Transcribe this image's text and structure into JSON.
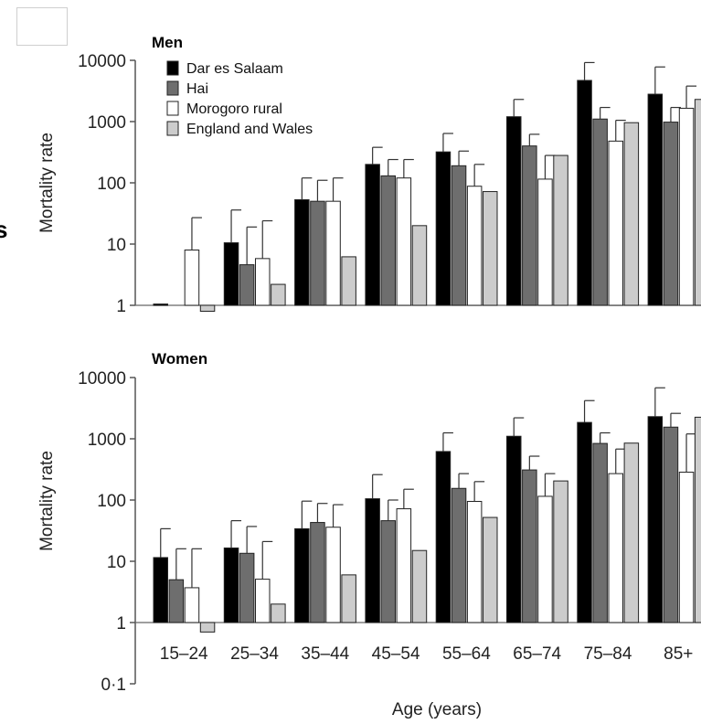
{
  "chart_data": [
    {
      "type": "bar",
      "title": "Men",
      "ylabel": "Mortality rate",
      "xlabel": "",
      "yscale": "log",
      "ylim": [
        1,
        10000
      ],
      "yticks": [
        "1",
        "10",
        "100",
        "1000",
        "10000"
      ],
      "categories": [
        "15–24",
        "25–34",
        "35–44",
        "45–54",
        "55–64",
        "65–74",
        "75–84",
        "85+"
      ],
      "legend_position": "top-left",
      "series": [
        {
          "name": "Dar es Salaam",
          "color": "#000000",
          "values": [
            1.05,
            10.5,
            53,
            200,
            320,
            1200,
            4700,
            2800
          ],
          "error_upper": [
            null,
            36,
            120,
            380,
            640,
            2300,
            9200,
            7800
          ]
        },
        {
          "name": "Hai",
          "color": "#6e6e6e",
          "values": [
            null,
            4.6,
            50,
            130,
            190,
            400,
            1100,
            980
          ],
          "error_upper": [
            null,
            19,
            110,
            240,
            330,
            620,
            1700,
            1700
          ]
        },
        {
          "name": "Morogoro rural",
          "color": "#ffffff",
          "values": [
            8,
            5.8,
            50,
            120,
            88,
            115,
            480,
            1650
          ],
          "error_upper": [
            27,
            24,
            120,
            240,
            200,
            280,
            1050,
            3800
          ]
        },
        {
          "name": "England and Wales",
          "color": "#cccccc",
          "values": [
            0.8,
            2.2,
            6.2,
            20,
            72,
            280,
            960,
            2300
          ],
          "error_upper": [
            null,
            null,
            null,
            null,
            null,
            null,
            null,
            null
          ]
        }
      ]
    },
    {
      "type": "bar",
      "title": "Women",
      "ylabel": "Mortality rate",
      "xlabel": "Age (years)",
      "yscale": "log",
      "ylim": [
        0.1,
        10000
      ],
      "yticks": [
        "0·1",
        "1",
        "10",
        "100",
        "1000",
        "10000"
      ],
      "categories": [
        "15–24",
        "25–34",
        "35–44",
        "45–54",
        "55–64",
        "65–74",
        "75–84",
        "85+"
      ],
      "series": [
        {
          "name": "Dar es Salaam",
          "color": "#000000",
          "values": [
            11.5,
            16.5,
            34,
            105,
            620,
            1100,
            1850,
            2300
          ],
          "error_upper": [
            34,
            46,
            96,
            260,
            1250,
            2200,
            4200,
            6800
          ]
        },
        {
          "name": "Hai",
          "color": "#6e6e6e",
          "values": [
            5,
            13.5,
            43,
            46,
            155,
            310,
            840,
            1550
          ],
          "error_upper": [
            16,
            37,
            88,
            100,
            270,
            520,
            1250,
            2600
          ]
        },
        {
          "name": "Morogoro rural",
          "color": "#ffffff",
          "values": [
            3.7,
            5.1,
            36,
            72,
            95,
            115,
            270,
            285
          ],
          "error_upper": [
            16,
            21,
            84,
            150,
            200,
            270,
            680,
            1200
          ]
        },
        {
          "name": "England and Wales",
          "color": "#cccccc",
          "values": [
            0.7,
            2.0,
            6.0,
            15,
            52,
            205,
            850,
            2250
          ],
          "error_upper": [
            null,
            null,
            null,
            null,
            null,
            null,
            null,
            null
          ]
        }
      ]
    }
  ]
}
